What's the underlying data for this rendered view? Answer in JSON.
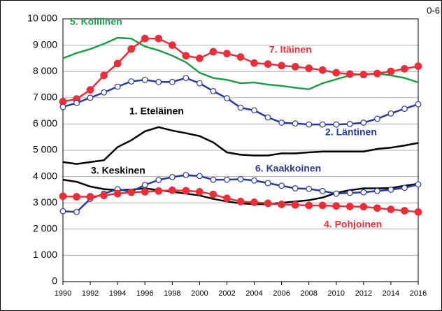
{
  "chart_data": {
    "type": "line",
    "corner_label": "0-6",
    "x": [
      1990,
      1991,
      1992,
      1993,
      1994,
      1995,
      1996,
      1997,
      1998,
      1999,
      2000,
      2001,
      2002,
      2003,
      2004,
      2005,
      2006,
      2007,
      2008,
      2009,
      2010,
      2011,
      2012,
      2013,
      2014,
      2015,
      2016
    ],
    "xlim": [
      1990,
      2016
    ],
    "xticks": [
      1990,
      1992,
      1994,
      1996,
      1998,
      2000,
      2002,
      2004,
      2006,
      2008,
      2010,
      2012,
      2014,
      2016
    ],
    "ylim": [
      0,
      10000
    ],
    "yticks": [
      0,
      {
        "value": 1000,
        "label": "1 000"
      },
      {
        "value": 2000,
        "label": "2 000"
      },
      {
        "value": 3000,
        "label": "3 000"
      },
      {
        "value": 4000,
        "label": "4 000"
      },
      {
        "value": 5000,
        "label": "5 000"
      },
      {
        "value": 6000,
        "label": "6 000"
      },
      {
        "value": 7000,
        "label": "7 000"
      },
      {
        "value": 8000,
        "label": "8 000"
      },
      {
        "value": 9000,
        "label": "9 000"
      },
      {
        "value": 10000,
        "label": "10 000"
      }
    ],
    "grid": true,
    "series": [
      {
        "name": "5. Koillinen",
        "color": "#1e9e4a",
        "marker": "none",
        "values": [
          8500,
          8700,
          8850,
          9050,
          9280,
          9250,
          8950,
          8800,
          8600,
          8350,
          7950,
          7750,
          7680,
          7550,
          7580,
          7500,
          7450,
          7380,
          7320,
          7550,
          7700,
          7850,
          7900,
          7920,
          7850,
          7750,
          7580
        ]
      },
      {
        "name": "7. Itäinen",
        "color": "#e8303a",
        "marker": "filled",
        "values": [
          6850,
          6950,
          7300,
          7850,
          8300,
          8850,
          9250,
          9250,
          9000,
          8600,
          8500,
          8750,
          8680,
          8550,
          8320,
          8280,
          8220,
          8180,
          8120,
          8050,
          7950,
          7900,
          7880,
          7920,
          8000,
          8100,
          8200
        ]
      },
      {
        "name": "1. Eteläinen",
        "color": "#000000",
        "marker": "none",
        "values": [
          4550,
          4480,
          4550,
          4620,
          5120,
          5380,
          5720,
          5880,
          5750,
          5650,
          5540,
          5300,
          4920,
          4830,
          4800,
          4800,
          4880,
          4880,
          4920,
          4950,
          4950,
          4950,
          4950,
          5050,
          5100,
          5180,
          5280
        ]
      },
      {
        "name": "2. Läntinen",
        "color": "#2b3a98",
        "marker": "open",
        "values": [
          6650,
          6800,
          7000,
          7200,
          7420,
          7620,
          7680,
          7600,
          7600,
          7750,
          7550,
          7250,
          6980,
          6620,
          6520,
          6250,
          6050,
          6020,
          5980,
          5980,
          5980,
          6000,
          6050,
          6200,
          6400,
          6580,
          6750
        ]
      },
      {
        "name": "3. Keskinen",
        "color": "#000000",
        "marker": "none",
        "values": [
          3880,
          3800,
          3620,
          3520,
          3480,
          3500,
          3550,
          3480,
          3420,
          3350,
          3280,
          3150,
          3050,
          2980,
          2950,
          2950,
          3000,
          3050,
          3100,
          3200,
          3380,
          3480,
          3550,
          3550,
          3560,
          3650,
          3720
        ]
      },
      {
        "name": "6. Kaakkoinen",
        "color": "#2b3a98",
        "marker": "open",
        "values": [
          2680,
          2650,
          3150,
          3350,
          3520,
          3420,
          3680,
          3870,
          3980,
          4060,
          4020,
          3880,
          3880,
          3900,
          3850,
          3750,
          3650,
          3550,
          3530,
          3450,
          3350,
          3380,
          3400,
          3450,
          3500,
          3570,
          3700
        ]
      },
      {
        "name": "4. Pohjoinen",
        "color": "#e8303a",
        "marker": "filled",
        "values": [
          3250,
          3230,
          3230,
          3280,
          3350,
          3400,
          3420,
          3450,
          3480,
          3460,
          3420,
          3320,
          3170,
          3050,
          3020,
          2980,
          2940,
          2920,
          2900,
          2900,
          2880,
          2860,
          2850,
          2800,
          2750,
          2700,
          2650
        ]
      }
    ]
  }
}
